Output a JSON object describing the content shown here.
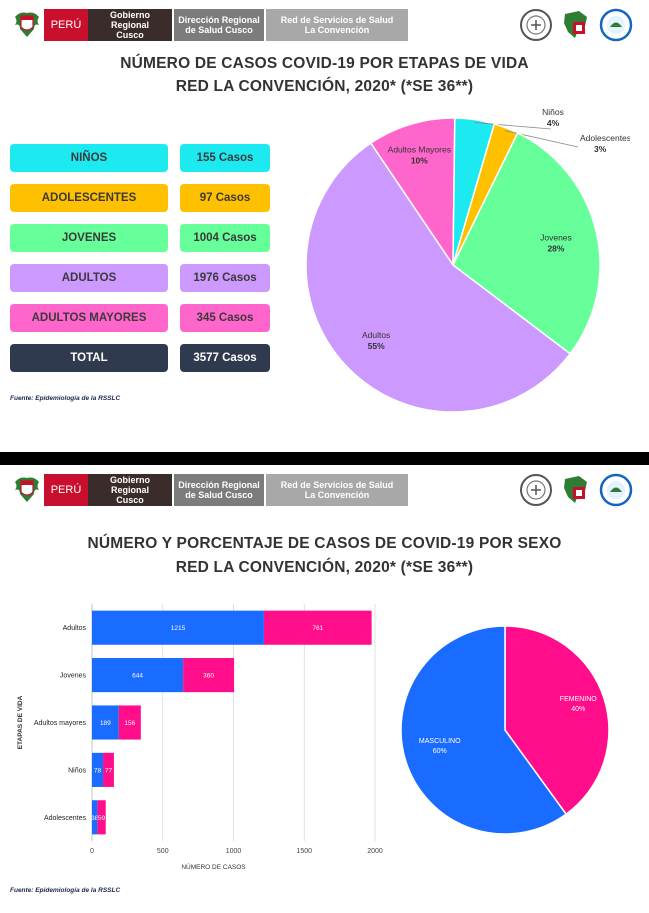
{
  "header": {
    "peru": "PERÚ",
    "gobierno": [
      "Gobierno Regional",
      "Cusco"
    ],
    "direccion": [
      "Dirección  Regional",
      "de Salud Cusco"
    ],
    "red": [
      "Red de Servicios de Salud",
      "La Convención"
    ]
  },
  "icons": {
    "crest": "national-coat-of-arms-icon",
    "logos": [
      "epidemiology-seal-icon",
      "region-map-logo-icon",
      "red-convencion-seal-icon"
    ]
  },
  "panel1": {
    "title_line1": "NÚMERO DE CASOS COVID-19 POR ETAPAS DE VIDA",
    "title_line2": "RED LA CONVENCIÓN, 2020* (*SE 36**)",
    "rows": [
      {
        "label": "NIÑOS",
        "value": "155 Casos",
        "color": "#1de9f0"
      },
      {
        "label": "ADOLESCENTES",
        "value": "97 Casos",
        "color": "#ffc000"
      },
      {
        "label": "JOVENES",
        "value": "1004 Casos",
        "color": "#66ff99"
      },
      {
        "label": "ADULTOS",
        "value": "1976 Casos",
        "color": "#cc99ff"
      },
      {
        "label": "ADULTOS MAYORES",
        "value": "345 Casos",
        "color": "#ff66cc"
      },
      {
        "label": "TOTAL",
        "value": "3577 Casos",
        "color": "#2f3a4e"
      }
    ],
    "source": "Fuente: Epidemiología de la RSSLC"
  },
  "panel2": {
    "title_line1": "NÚMERO Y PORCENTAJE DE CASOS DE COVID-19 POR SEXO",
    "title_line2": "RED LA CONVENCIÓN, 2020* (*SE 36**)",
    "source": "Fuente: Epidemiología de la RSSLC"
  },
  "chart_data": [
    {
      "type": "pie",
      "labels": [
        "Niños",
        "Adolescentes",
        "Jovenes",
        "Adultos",
        "Adultos Mayores"
      ],
      "values": [
        155,
        97,
        1004,
        1976,
        345
      ],
      "percent_labels": [
        "4%",
        "3%",
        "28%",
        "55%",
        "10%"
      ],
      "colors": [
        "#1de9f0",
        "#ffc000",
        "#66ff99",
        "#cc99ff",
        "#ff66cc"
      ]
    },
    {
      "type": "bar",
      "orientation": "horizontal",
      "stacked": true,
      "categories": [
        "Adultos",
        "Jovenes",
        "Adultos mayores",
        "Niños",
        "Adolescentes"
      ],
      "series": [
        {
          "values": [
            1215,
            644,
            189,
            78,
            38
          ],
          "color": "#1a6bff"
        },
        {
          "values": [
            761,
            360,
            156,
            77,
            59
          ],
          "color": "#ff0d8a"
        }
      ],
      "xlabel": "NÚMERO DE CASOS",
      "ylabel": "ETAPAS DE VIDA",
      "xlim": [
        0,
        2000
      ],
      "xticks": [
        0,
        500,
        1000,
        1500,
        2000
      ],
      "grid": true
    },
    {
      "type": "pie",
      "labels": [
        "FEMENINO",
        "MASCULINO"
      ],
      "values": [
        40,
        60
      ],
      "percent_labels": [
        "40%",
        "60%"
      ],
      "colors": [
        "#ff0d8a",
        "#1a6bff"
      ]
    }
  ]
}
